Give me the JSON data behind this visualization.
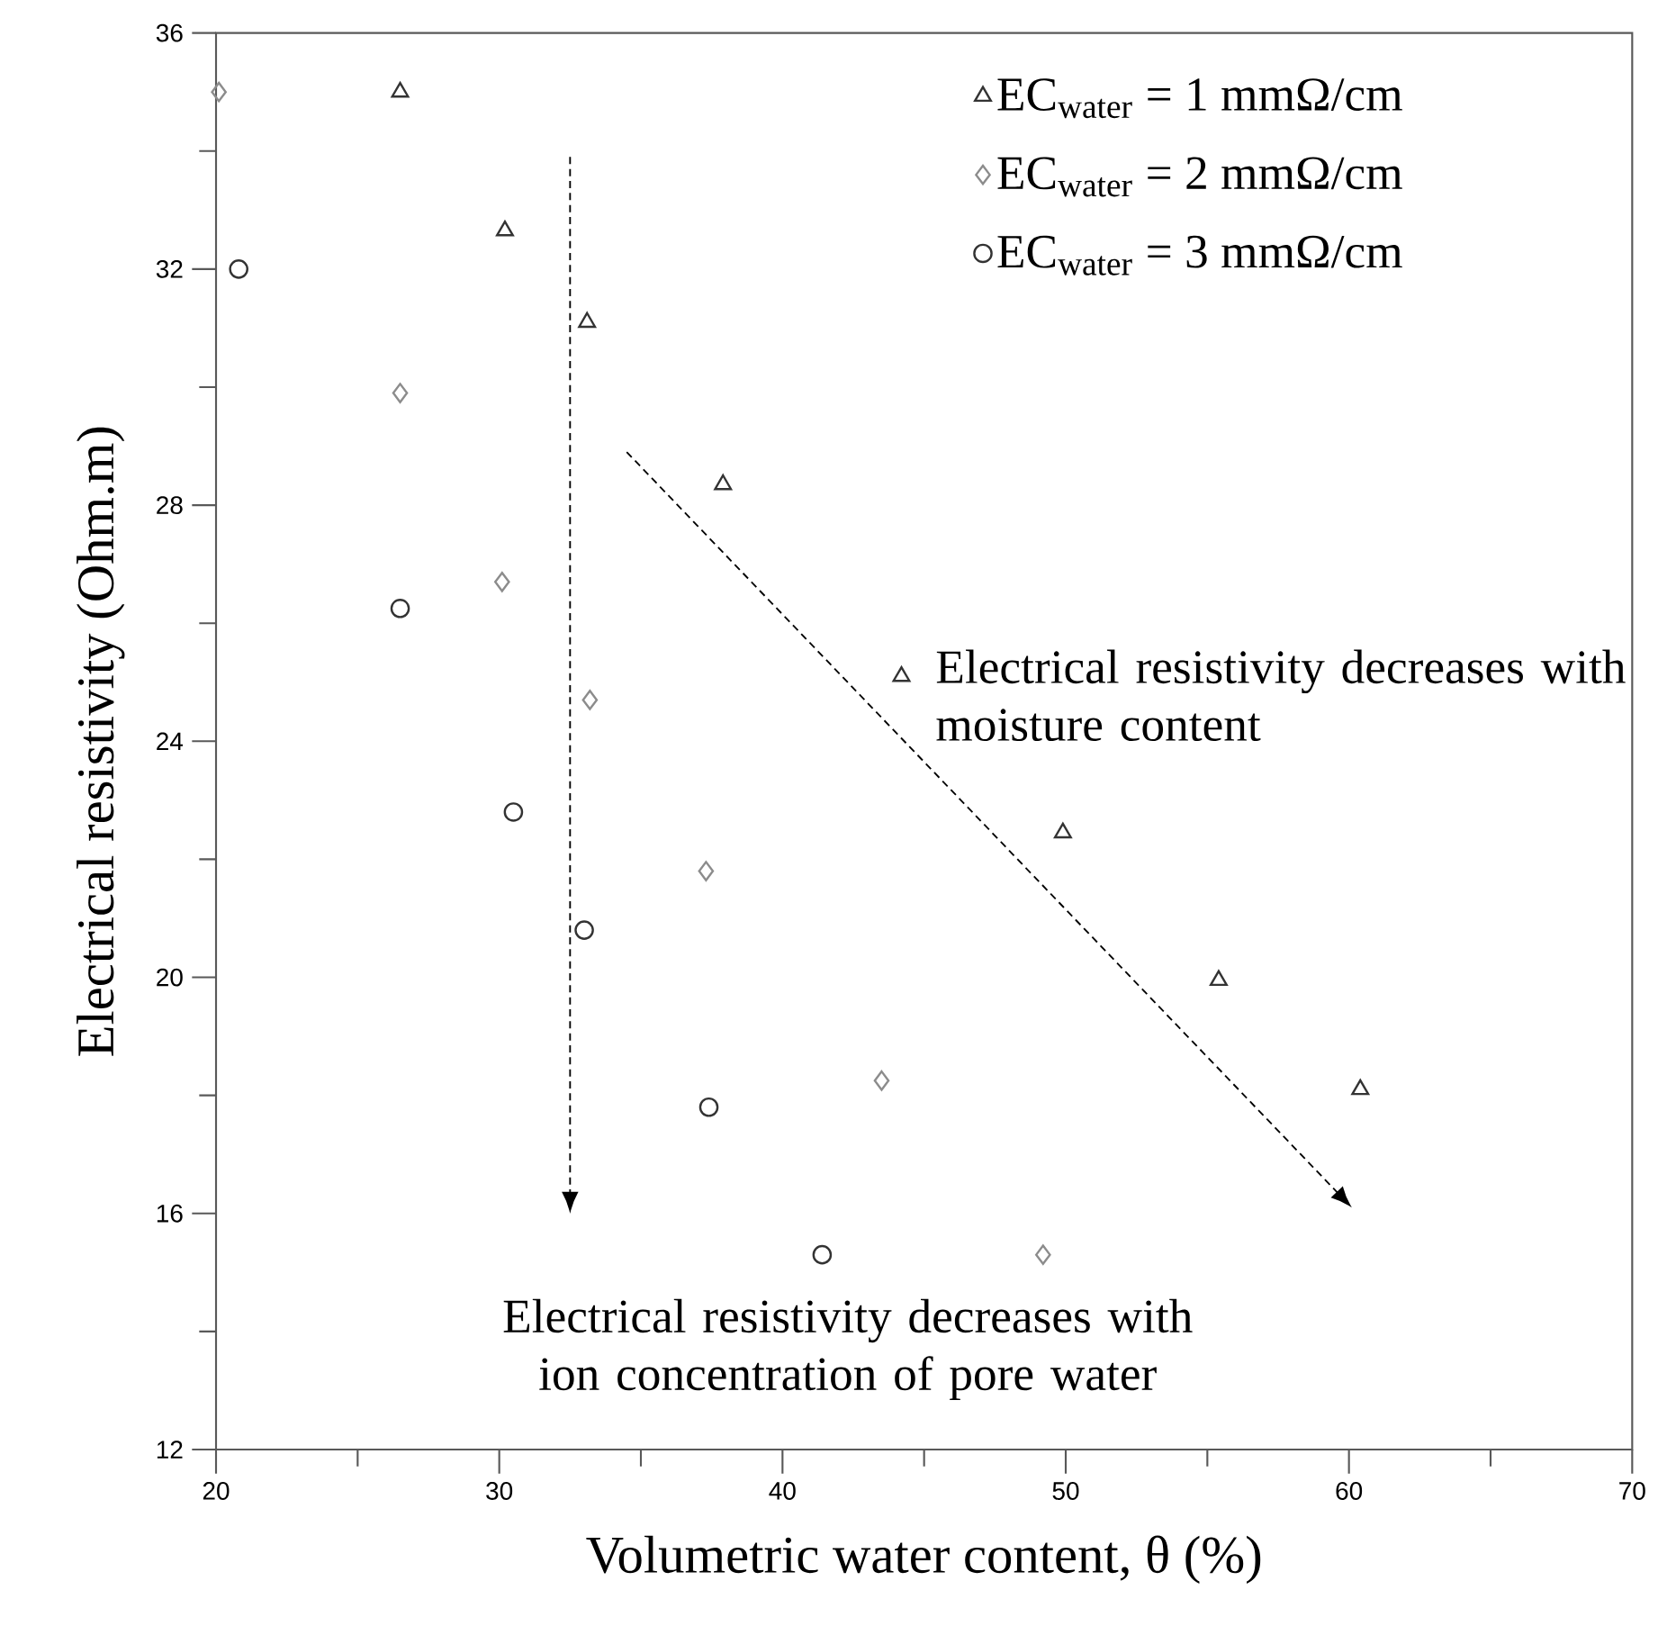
{
  "chart_data": {
    "type": "scatter",
    "xlabel": "Volumetric water content, θ (%)",
    "ylabel": "Electrical resistivity (Ohm.m)",
    "xlim": [
      20,
      70
    ],
    "xticks": [
      20,
      30,
      40,
      50,
      60,
      70
    ],
    "ylim": [
      12,
      36
    ],
    "yticks": [
      12,
      16,
      20,
      24,
      28,
      32,
      36
    ],
    "grid": false,
    "legend": "top right",
    "series": [
      {
        "name": "EC$_{water}$ = 1 mmΩ/cm",
        "color": "#333333",
        "marker": "triangle",
        "x": [
          26.5,
          30.2,
          33.1,
          37.9,
          44.2,
          49.9,
          55.4,
          60.4
        ],
        "values": [
          35.0,
          32.65,
          31.1,
          28.35,
          25.1,
          22.45,
          19.95,
          18.1
        ]
      },
      {
        "name": "EC$_{water}$ = 2 mmΩ/cm",
        "color": "#8c8c8c",
        "marker": "diamond",
        "x": [
          20.1,
          26.5,
          30.1,
          33.2,
          37.3,
          43.5,
          49.2
        ],
        "values": [
          35.0,
          29.9,
          26.7,
          24.7,
          21.8,
          18.25,
          15.3
        ]
      },
      {
        "name": "EC$_{water}$ = 3 mmΩ/cm",
        "color": "#333333",
        "marker": "circle",
        "x": [
          20.8,
          26.5,
          30.5,
          33.0,
          37.4,
          41.4
        ],
        "values": [
          32.0,
          26.25,
          22.8,
          20.8,
          17.8,
          15.3
        ]
      }
    ],
    "annotations": [
      "Electrical resistivity decreases with ion concentration of pore water",
      "Electrical resistivity decreases with moisture content"
    ]
  }
}
